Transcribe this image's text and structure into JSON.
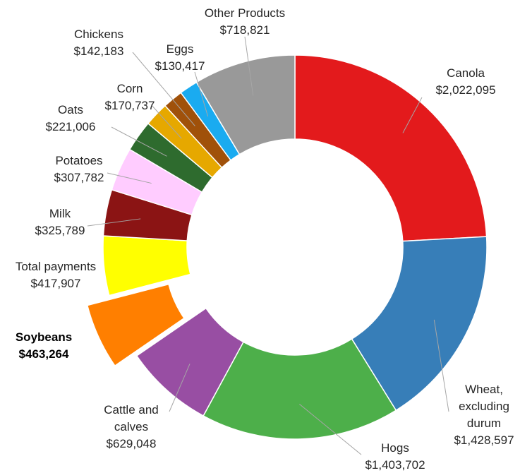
{
  "chart_data": {
    "type": "doughnut",
    "title": "",
    "slices": [
      {
        "name": "Canola",
        "label": "Canola",
        "value_label": "$2,022,095",
        "value": 2022095,
        "color": "#e31a1c"
      },
      {
        "name": "Wheat, excluding durum",
        "label": "Wheat, excluding durum",
        "value_label": "$1,428,597",
        "value": 1428597,
        "color": "#377eb8"
      },
      {
        "name": "Hogs",
        "label": "Hogs",
        "value_label": "$1,403,702",
        "value": 1403702,
        "color": "#4daf4a"
      },
      {
        "name": "Cattle and calves",
        "label": "Cattle and calves",
        "value_label": "$629,048",
        "value": 629048,
        "color": "#984ea3"
      },
      {
        "name": "Soybeans",
        "label": "Soybeans",
        "value_label": "$463,264",
        "value": 463264,
        "color": "#ff7f00",
        "exploded": true,
        "bold_label": true
      },
      {
        "name": "Total payments",
        "label": "Total payments",
        "value_label": "$417,907",
        "value": 417907,
        "color": "#ffff00"
      },
      {
        "name": "Milk",
        "label": "Milk",
        "value_label": "$325,789",
        "value": 325789,
        "color": "#8b1414"
      },
      {
        "name": "Potatoes",
        "label": "Potatoes",
        "value_label": "$307,782",
        "value": 307782,
        "color": "#ffccff"
      },
      {
        "name": "Oats",
        "label": "Oats",
        "value_label": "$221,006",
        "value": 221006,
        "color": "#2e6b2e"
      },
      {
        "name": "Corn",
        "label": "Corn",
        "value_label": "$170,737",
        "value": 170737,
        "color": "#e6a800"
      },
      {
        "name": "Chickens",
        "label": "Chickens",
        "value_label": "$142,183",
        "value": 142183,
        "color": "#a0510a"
      },
      {
        "name": "Eggs",
        "label": "Eggs",
        "value_label": "$130,417",
        "value": 130417,
        "color": "#1aabf0"
      },
      {
        "name": "Other Products",
        "label": "Other Products",
        "value_label": "$718,821",
        "value": 718821,
        "color": "#999999"
      }
    ],
    "legend": "none",
    "data_labels": "outside with leader lines"
  }
}
